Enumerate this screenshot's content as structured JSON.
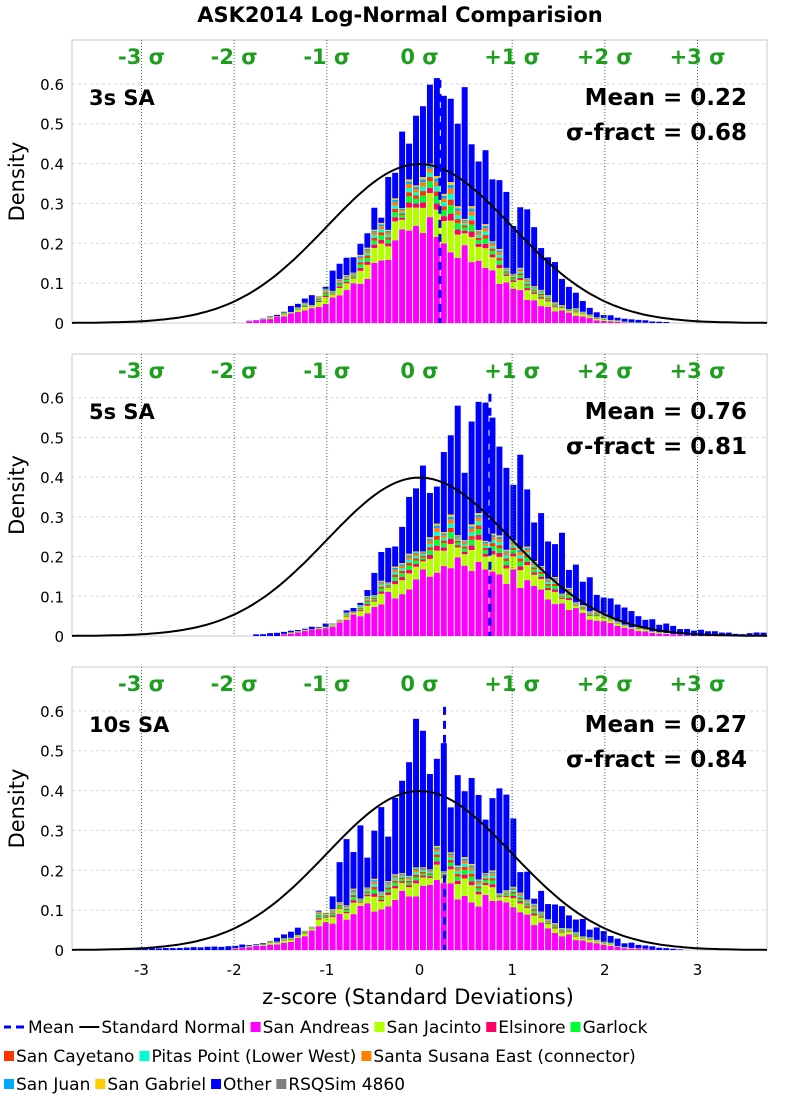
{
  "chart_data": {
    "type": "bar",
    "title": "ASK2014 Log-Normal Comparision",
    "xlabel": "z-score (Standard Deviations)",
    "ylabel": "Density",
    "xlim": [
      -3.75,
      3.75
    ],
    "ylim": [
      0,
      0.7
    ],
    "x_ticks": [
      "-3",
      "-2",
      "-1",
      "0",
      "1",
      "2",
      "3"
    ],
    "y_ticks": [
      "0",
      "0.1",
      "0.2",
      "0.3",
      "0.4",
      "0.5",
      "0.6"
    ],
    "sigma_labels": [
      "-3 σ",
      "-2 σ",
      "-1 σ",
      "0 σ",
      "+1 σ",
      "+2 σ",
      "+3 σ"
    ],
    "legend": [
      {
        "name": "Mean",
        "color": "#0000ff",
        "kind": "dash"
      },
      {
        "name": "Standard Normal",
        "color": "#000000",
        "kind": "line"
      },
      {
        "name": "San Andreas",
        "color": "#ff00ff",
        "kind": "box"
      },
      {
        "name": "San Jacinto",
        "color": "#b3ff00",
        "kind": "box"
      },
      {
        "name": "Elsinore",
        "color": "#ff0066",
        "kind": "box"
      },
      {
        "name": "Garlock",
        "color": "#00ff33",
        "kind": "box"
      },
      {
        "name": "San Cayetano",
        "color": "#ff3300",
        "kind": "box"
      },
      {
        "name": "Pitas Point (Lower West)",
        "color": "#00ffcc",
        "kind": "box"
      },
      {
        "name": "Santa Susana East (connector)",
        "color": "#ff8000",
        "kind": "box"
      },
      {
        "name": "San Juan",
        "color": "#00a6ff",
        "kind": "box"
      },
      {
        "name": "San Gabriel",
        "color": "#ffcc00",
        "kind": "box"
      },
      {
        "name": "Other",
        "color": "#0000ff",
        "kind": "box"
      },
      {
        "name": "RSQSim 4860",
        "color": "#808080",
        "kind": "box"
      }
    ],
    "panels": [
      {
        "label": "3s SA",
        "mean": 0.22,
        "sigma_fract": 0.68,
        "mean_text": "Mean = 0.22",
        "sigma_text": "σ-fract = 0.68",
        "envelope": [
          [
            -1.9,
            0.003
          ],
          [
            -1.7,
            0.01
          ],
          [
            -1.5,
            0.02
          ],
          [
            -1.3,
            0.05
          ],
          [
            -1.1,
            0.08
          ],
          [
            -0.9,
            0.12
          ],
          [
            -0.7,
            0.17
          ],
          [
            -0.5,
            0.27
          ],
          [
            -0.3,
            0.36
          ],
          [
            -0.1,
            0.5
          ],
          [
            0.0,
            0.6
          ],
          [
            0.1,
            0.58
          ],
          [
            0.3,
            0.56
          ],
          [
            0.5,
            0.5
          ],
          [
            0.7,
            0.45
          ],
          [
            0.9,
            0.32
          ],
          [
            1.1,
            0.27
          ],
          [
            1.3,
            0.2
          ],
          [
            1.5,
            0.14
          ],
          [
            1.7,
            0.06
          ],
          [
            1.9,
            0.025
          ],
          [
            2.2,
            0.01
          ],
          [
            2.6,
            0.003
          ],
          [
            2.9,
            0.0
          ]
        ],
        "colored_envelope": [
          [
            -1.9,
            0.002
          ],
          [
            -1.5,
            0.02
          ],
          [
            -1.1,
            0.06
          ],
          [
            -0.7,
            0.13
          ],
          [
            -0.3,
            0.28
          ],
          [
            0.0,
            0.36
          ],
          [
            0.3,
            0.33
          ],
          [
            0.7,
            0.22
          ],
          [
            1.1,
            0.12
          ],
          [
            1.5,
            0.05
          ],
          [
            1.9,
            0.015
          ],
          [
            2.3,
            0.003
          ],
          [
            2.6,
            0.0
          ]
        ],
        "magenta_envelope": [
          [
            -1.9,
            0.002
          ],
          [
            -1.5,
            0.015
          ],
          [
            -1.1,
            0.04
          ],
          [
            -0.7,
            0.09
          ],
          [
            -0.3,
            0.19
          ],
          [
            0.0,
            0.25
          ],
          [
            0.3,
            0.21
          ],
          [
            0.7,
            0.13
          ],
          [
            1.1,
            0.07
          ],
          [
            1.5,
            0.03
          ],
          [
            1.9,
            0.008
          ],
          [
            2.3,
            0.0
          ]
        ],
        "tall_bins": [
          [
            0.27,
            0.57
          ],
          [
            0.43,
            0.5
          ],
          [
            -0.03,
            0.52
          ],
          [
            -0.13,
            0.45
          ]
        ]
      },
      {
        "label": "5s SA",
        "mean": 0.76,
        "sigma_fract": 0.81,
        "mean_text": "Mean = 0.76",
        "sigma_text": "σ-fract = 0.81",
        "envelope": [
          [
            -1.8,
            0.003
          ],
          [
            -1.5,
            0.01
          ],
          [
            -1.2,
            0.02
          ],
          [
            -0.9,
            0.04
          ],
          [
            -0.6,
            0.11
          ],
          [
            -0.4,
            0.19
          ],
          [
            -0.2,
            0.25
          ],
          [
            0.0,
            0.38
          ],
          [
            0.2,
            0.42
          ],
          [
            0.4,
            0.46
          ],
          [
            0.6,
            0.53
          ],
          [
            0.8,
            0.5
          ],
          [
            1.0,
            0.45
          ],
          [
            1.2,
            0.35
          ],
          [
            1.4,
            0.27
          ],
          [
            1.6,
            0.2
          ],
          [
            1.8,
            0.14
          ],
          [
            2.0,
            0.09
          ],
          [
            2.2,
            0.07
          ],
          [
            2.5,
            0.04
          ],
          [
            2.8,
            0.02
          ],
          [
            3.2,
            0.01
          ],
          [
            3.5,
            0.005
          ],
          [
            3.75,
            0.01
          ]
        ],
        "colored_envelope": [
          [
            -1.5,
            0.005
          ],
          [
            -1.0,
            0.03
          ],
          [
            -0.6,
            0.09
          ],
          [
            -0.2,
            0.18
          ],
          [
            0.2,
            0.27
          ],
          [
            0.6,
            0.28
          ],
          [
            1.0,
            0.24
          ],
          [
            1.4,
            0.15
          ],
          [
            1.8,
            0.07
          ],
          [
            2.2,
            0.03
          ],
          [
            2.6,
            0.01
          ],
          [
            3.0,
            0.0
          ]
        ],
        "magenta_envelope": [
          [
            -1.5,
            0.003
          ],
          [
            -1.0,
            0.02
          ],
          [
            -0.6,
            0.06
          ],
          [
            -0.2,
            0.12
          ],
          [
            0.2,
            0.18
          ],
          [
            0.6,
            0.17
          ],
          [
            1.0,
            0.15
          ],
          [
            1.4,
            0.1
          ],
          [
            1.8,
            0.05
          ],
          [
            2.2,
            0.02
          ],
          [
            2.6,
            0.006
          ],
          [
            3.0,
            0.0
          ]
        ],
        "tall_bins": [
          [
            0.42,
            0.58
          ],
          [
            0.82,
            0.55
          ],
          [
            0.6,
            0.54
          ]
        ]
      },
      {
        "label": "10s SA",
        "mean": 0.27,
        "sigma_fract": 0.84,
        "mean_text": "Mean = 0.27",
        "sigma_text": "σ-fract = 0.84",
        "envelope": [
          [
            -3.2,
            0.003
          ],
          [
            -2.6,
            0.005
          ],
          [
            -2.0,
            0.01
          ],
          [
            -1.6,
            0.02
          ],
          [
            -1.3,
            0.05
          ],
          [
            -1.1,
            0.08
          ],
          [
            -0.9,
            0.15
          ],
          [
            -0.85,
            0.27
          ],
          [
            -0.6,
            0.27
          ],
          [
            -0.4,
            0.31
          ],
          [
            -0.2,
            0.4
          ],
          [
            0.0,
            0.52
          ],
          [
            0.1,
            0.53
          ],
          [
            0.2,
            0.48
          ],
          [
            0.4,
            0.4
          ],
          [
            0.6,
            0.38
          ],
          [
            0.8,
            0.36
          ],
          [
            1.0,
            0.33
          ],
          [
            1.1,
            0.2
          ],
          [
            1.3,
            0.13
          ],
          [
            1.5,
            0.1
          ],
          [
            1.7,
            0.08
          ],
          [
            1.9,
            0.05
          ],
          [
            2.2,
            0.02
          ],
          [
            2.6,
            0.005
          ],
          [
            2.9,
            0.0
          ]
        ],
        "colored_envelope": [
          [
            -2.0,
            0.005
          ],
          [
            -1.4,
            0.03
          ],
          [
            -1.0,
            0.1
          ],
          [
            -0.6,
            0.15
          ],
          [
            -0.2,
            0.19
          ],
          [
            0.0,
            0.24
          ],
          [
            0.3,
            0.23
          ],
          [
            0.6,
            0.2
          ],
          [
            1.0,
            0.15
          ],
          [
            1.4,
            0.07
          ],
          [
            1.8,
            0.03
          ],
          [
            2.2,
            0.01
          ],
          [
            2.6,
            0.0
          ]
        ],
        "magenta_envelope": [
          [
            -2.0,
            0.003
          ],
          [
            -1.4,
            0.02
          ],
          [
            -1.0,
            0.07
          ],
          [
            -0.6,
            0.1
          ],
          [
            -0.2,
            0.13
          ],
          [
            0.0,
            0.16
          ],
          [
            0.3,
            0.15
          ],
          [
            0.6,
            0.13
          ],
          [
            1.0,
            0.1
          ],
          [
            1.4,
            0.05
          ],
          [
            1.8,
            0.02
          ],
          [
            2.2,
            0.005
          ],
          [
            2.6,
            0.0
          ]
        ],
        "tall_bins": [
          [
            -0.03,
            0.58
          ],
          [
            0.07,
            0.55
          ],
          [
            1.05,
            0.33
          ]
        ]
      }
    ]
  }
}
